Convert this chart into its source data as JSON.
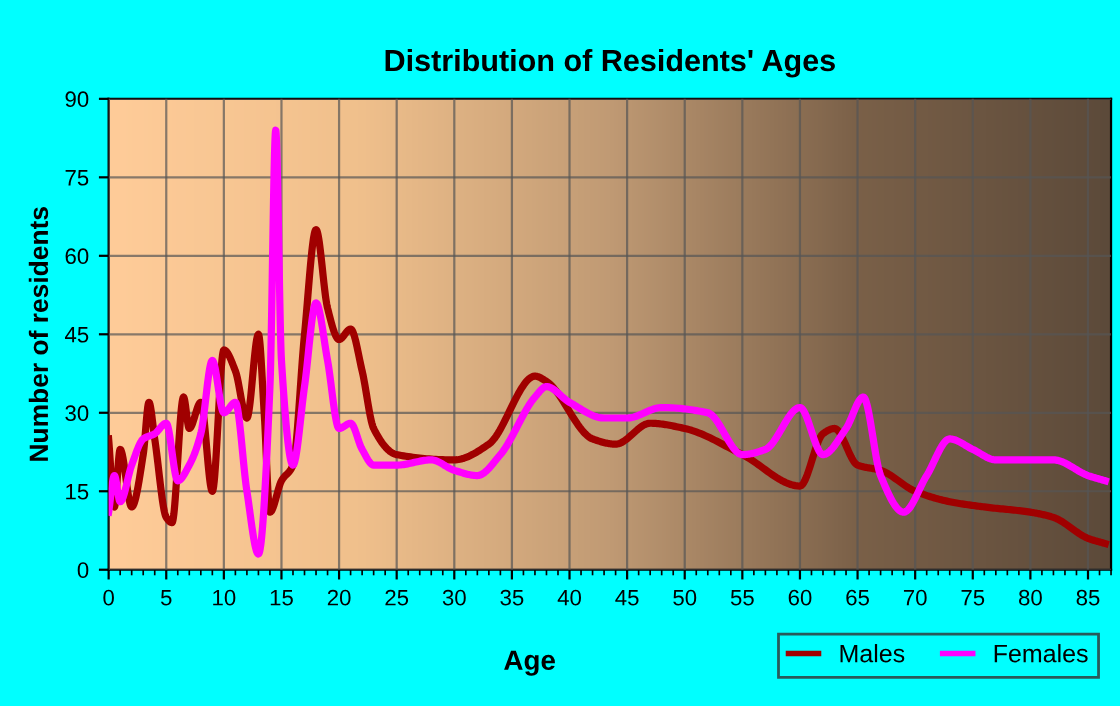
{
  "chart_data": {
    "type": "line",
    "title": "Distribution of Residents' Ages",
    "xlabel": "Age",
    "ylabel": "Number of residents",
    "xlim": [
      0,
      87
    ],
    "ylim": [
      0,
      90
    ],
    "xticks": [
      0,
      5,
      10,
      15,
      20,
      25,
      30,
      35,
      40,
      45,
      50,
      55,
      60,
      65,
      70,
      75,
      80,
      85
    ],
    "yticks": [
      0,
      15,
      30,
      45,
      60,
      75,
      90
    ],
    "grid": true,
    "legend": "bottom right",
    "marker": "none",
    "line_style": "solid",
    "series": [
      {
        "name": "Males",
        "color": "#a00000",
        "x": [
          0,
          0.5,
          1,
          2,
          3,
          3.5,
          4,
          5,
          5.5,
          6.5,
          7,
          8,
          9,
          10,
          11,
          12,
          13,
          13.5,
          14,
          15,
          16,
          17,
          18,
          19,
          20,
          21,
          22,
          23,
          25,
          30,
          33,
          37,
          38,
          42,
          44,
          47,
          50,
          55,
          60,
          62,
          63,
          65,
          67,
          70,
          73,
          76,
          80,
          82,
          85,
          86.5
        ],
        "values": [
          25,
          12,
          23,
          12,
          22,
          32,
          25,
          10,
          9,
          33,
          27,
          32,
          15,
          42,
          38,
          29,
          45,
          30,
          11,
          17,
          20,
          45,
          65,
          50,
          44,
          46,
          38,
          27,
          22,
          21,
          24,
          37,
          36,
          25,
          24,
          28,
          27,
          22,
          16,
          26,
          27,
          20,
          19,
          15,
          13,
          12,
          11,
          10,
          6,
          5
        ]
      },
      {
        "name": "Females",
        "color": "#ff00ff",
        "x": [
          0,
          0.5,
          1,
          2,
          3,
          4,
          5,
          6,
          7,
          8,
          9,
          10,
          11,
          12,
          13,
          14,
          14.5,
          15,
          16,
          17,
          18,
          19,
          20,
          21,
          22,
          23,
          25,
          28,
          30,
          32,
          34,
          37,
          38,
          40,
          43,
          45,
          48,
          52,
          55,
          57,
          60,
          62,
          64,
          65.5,
          67,
          69,
          71,
          73,
          75,
          77,
          80,
          82,
          85,
          86.5
        ],
        "values": [
          11,
          18,
          13,
          20,
          25,
          26,
          28,
          17,
          20,
          26,
          40,
          30,
          32,
          15,
          3,
          35,
          84,
          40,
          20,
          35,
          51,
          40,
          27,
          28,
          23,
          20,
          20,
          21,
          19,
          18,
          22,
          33,
          35,
          32,
          29,
          29,
          31,
          30,
          22,
          23,
          31,
          22,
          27,
          33,
          18,
          11,
          18,
          25,
          23,
          21,
          21,
          21,
          18,
          17
        ]
      }
    ]
  }
}
